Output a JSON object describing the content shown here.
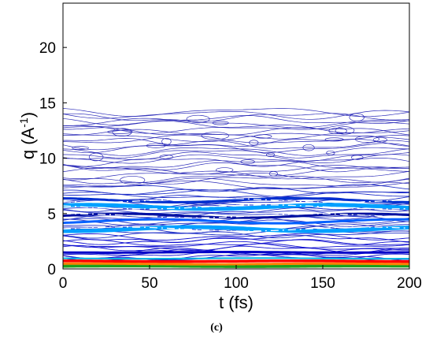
{
  "caption": "(c)",
  "chart_data": {
    "type": "contour",
    "xlabel": "t (fs)",
    "ylabel_main": "q (A",
    "ylabel_sup": "-1",
    "ylabel_end": ")",
    "xlim": [
      0,
      200
    ],
    "ylim": [
      0,
      24
    ],
    "xticks": [
      0,
      50,
      100,
      150,
      200
    ],
    "yticks": [
      0,
      5,
      10,
      15,
      20
    ],
    "colormap": [
      "#00008f",
      "#0000ff",
      "#0080ff",
      "#00ffff",
      "#80ff80",
      "#ffff00",
      "#ff8000",
      "#ff0000",
      "#800000"
    ],
    "bands": [
      {
        "q": 0.25,
        "color": "#1ea01e",
        "width": 4
      },
      {
        "q": 0.45,
        "color": "#ff8000",
        "width": 3
      },
      {
        "q": 0.7,
        "color": "#ff0000",
        "width": 3.5
      },
      {
        "q": 0.95,
        "color": "#00b0e0",
        "width": 2
      },
      {
        "q": 1.5,
        "color": "#0000c8",
        "width": 3
      },
      {
        "q": 3.6,
        "color": "#00a0ff",
        "width": 5
      },
      {
        "q": 4.3,
        "color": "#0060ff",
        "width": 3
      },
      {
        "q": 4.8,
        "color": "#0010a0",
        "width": 3
      },
      {
        "q": 5.6,
        "color": "#00a0ff",
        "width": 5
      },
      {
        "q": 6.2,
        "color": "#0030d0",
        "width": 3
      }
    ],
    "contour_region": {
      "q_min": 1.0,
      "q_max": 14.2,
      "fine_until": 7.5
    },
    "hatch_levels": [
      3.6,
      4.8,
      5.6,
      6.2
    ]
  }
}
